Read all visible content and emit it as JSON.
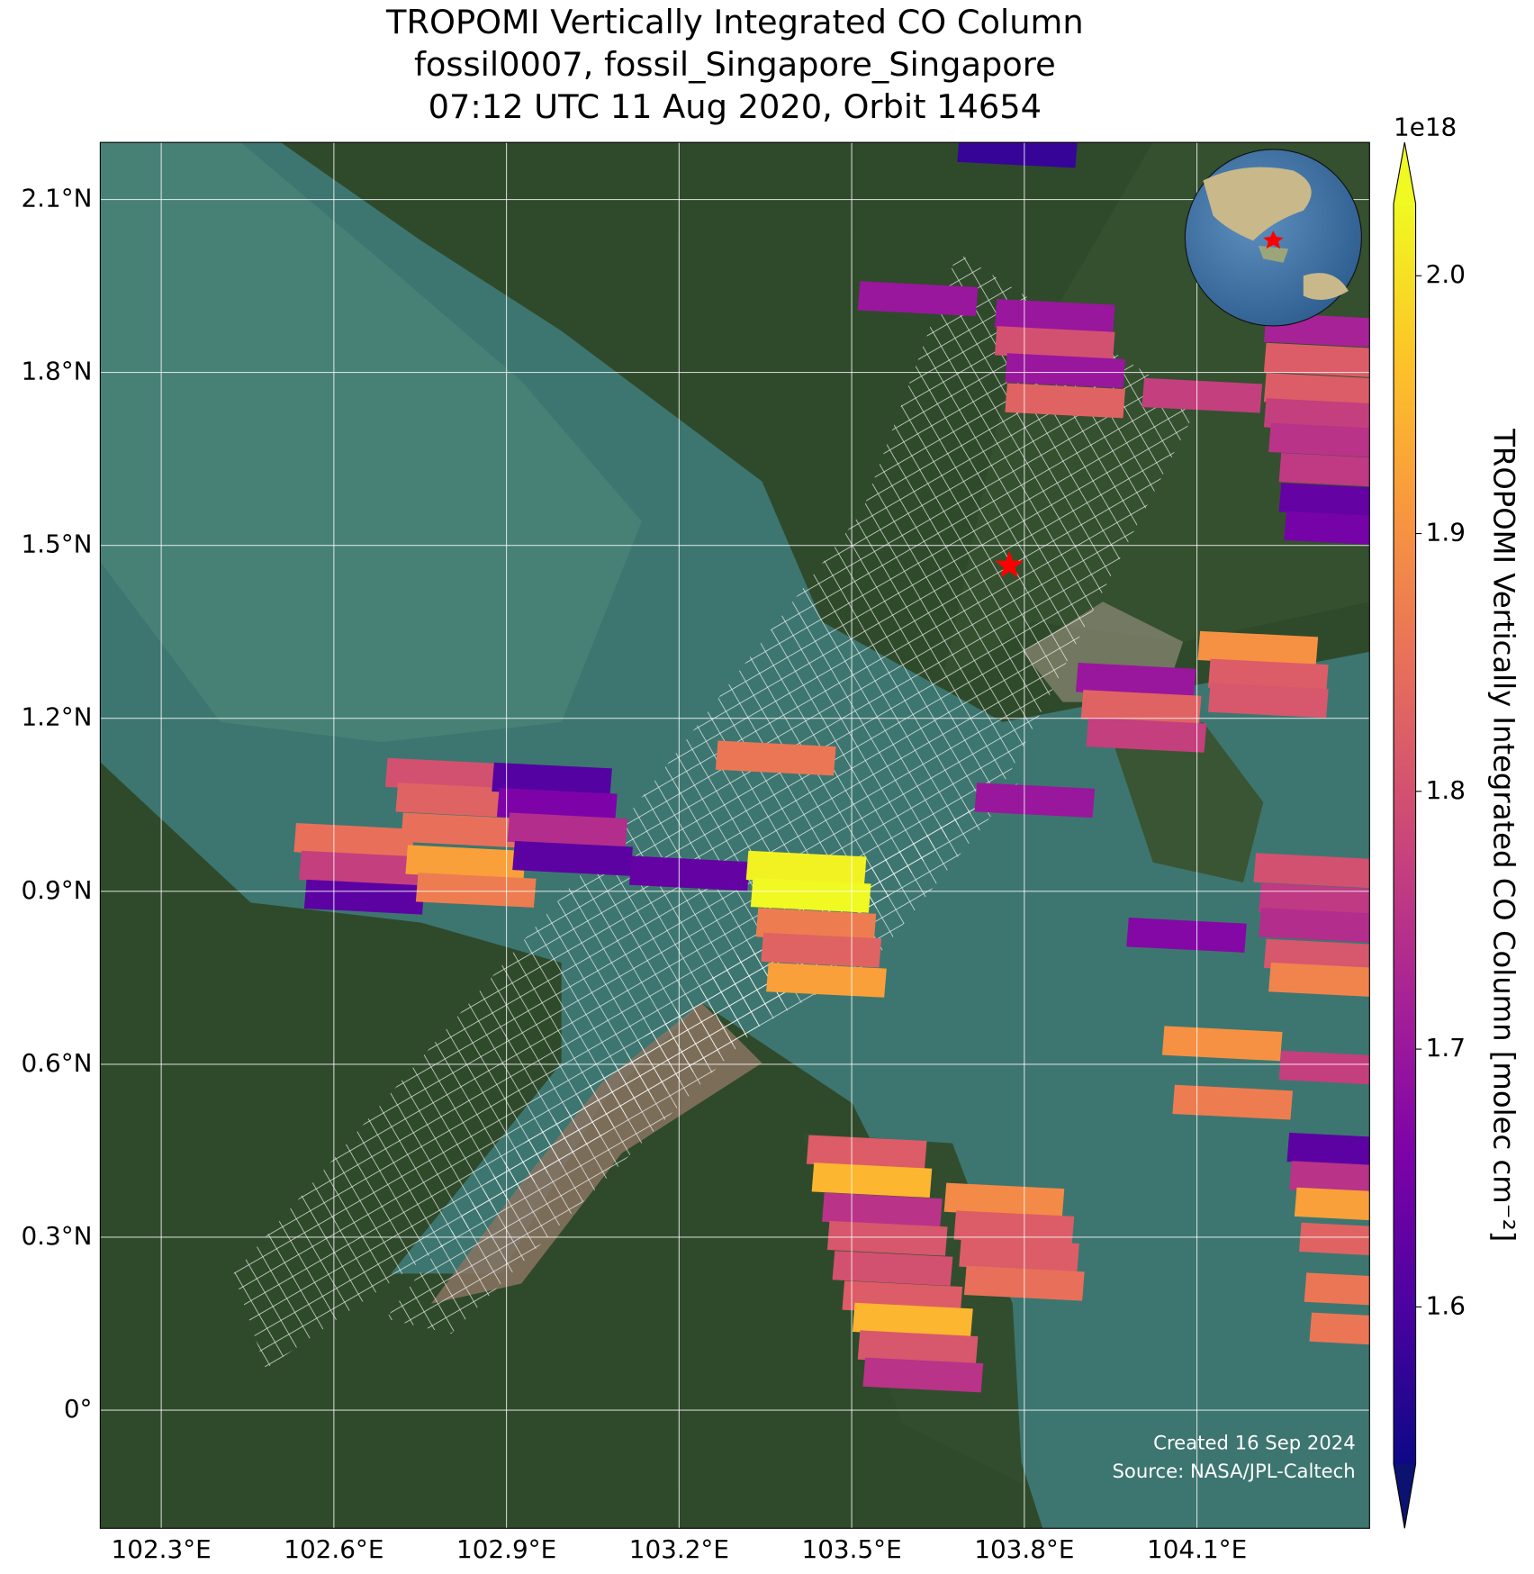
{
  "chart_data": {
    "type": "map",
    "title": [
      "TROPOMI Vertically Integrated CO Column",
      "fossil0007, fossil_Singapore_Singapore",
      "07:12 UTC 11 Aug 2020, Orbit 14654"
    ],
    "xlim": [
      102.194,
      104.4
    ],
    "ylim": [
      -0.205,
      2.199
    ],
    "xticks": [
      {
        "value": 102.3,
        "label": "102.3°E"
      },
      {
        "value": 102.6,
        "label": "102.6°E"
      },
      {
        "value": 102.9,
        "label": "102.9°E"
      },
      {
        "value": 103.2,
        "label": "103.2°E"
      },
      {
        "value": 103.5,
        "label": "103.5°E"
      },
      {
        "value": 103.8,
        "label": "103.8°E"
      },
      {
        "value": 104.1,
        "label": "104.1°E"
      }
    ],
    "yticks": [
      {
        "value": 0,
        "label": "0°"
      },
      {
        "value": 0.3,
        "label": "0.3°N"
      },
      {
        "value": 0.6,
        "label": "0.6°N"
      },
      {
        "value": 0.9,
        "label": "0.9°N"
      },
      {
        "value": 1.2,
        "label": "1.2°N"
      },
      {
        "value": 1.5,
        "label": "1.5°N"
      },
      {
        "value": 1.8,
        "label": "1.8°N"
      },
      {
        "value": 2.1,
        "label": "2.1°N"
      }
    ],
    "grid": true,
    "colorbar": {
      "label": "TROPOMI Vertically Integrated CO Column [molec cm⁻²]",
      "exponent": "1e18",
      "clim": [
        1.539,
        2.028
      ],
      "ticks": [
        1.6,
        1.7,
        1.8,
        1.9,
        {
          "value": 2,
          "label": "2.0"
        }
      ],
      "colormap": "plasma",
      "extend": "both"
    },
    "target": {
      "lon": 103.774,
      "lat": 1.465,
      "color": "red"
    },
    "pixels": {
      "lon": [
        103.788,
        103.615,
        103.853,
        103.853,
        103.871,
        103.871,
        104.109,
        104.321,
        104.321,
        104.321,
        104.321,
        104.329,
        104.347,
        104.347,
        104.356,
        104.206,
        104.224,
        104.224,
        103.994,
        104.003,
        104.012,
        103.368,
        103.818,
        102.635,
        102.644,
        102.653,
        102.794,
        102.812,
        102.821,
        102.829,
        102.847,
        102.979,
        102.988,
        103.006,
        103.015,
        103.218,
        103.421,
        103.429,
        103.438,
        103.447,
        103.456,
        104.303,
        104.312,
        104.082,
        104.312,
        104.321,
        104.329,
        104.144,
        104.162,
        104.347,
        103.526,
        103.535,
        103.553,
        103.562,
        103.571,
        103.588,
        103.606,
        103.615,
        103.624,
        103.765,
        103.782,
        103.791,
        103.8,
        104.361,
        104.365,
        104.374,
        104.382,
        104.391,
        104.4
      ],
      "lat": [
        2.185,
        1.928,
        1.897,
        1.85,
        1.803,
        1.751,
        1.76,
        1.873,
        1.821,
        1.769,
        1.725,
        1.682,
        1.63,
        1.578,
        1.529,
        1.321,
        1.273,
        1.231,
        1.266,
        1.219,
        1.171,
        1.131,
        1.058,
        0.988,
        0.94,
        0.89,
        1.101,
        1.058,
        1.006,
        0.95,
        0.902,
        1.093,
        1.049,
        1.006,
        0.957,
        0.931,
        0.94,
        0.893,
        0.841,
        0.798,
        0.746,
        0.936,
        0.884,
        0.824,
        0.841,
        0.787,
        0.746,
        0.636,
        0.534,
        0.593,
        0.447,
        0.399,
        0.347,
        0.298,
        0.246,
        0.194,
        0.156,
        0.108,
        0.061,
        0.364,
        0.316,
        0.269,
        0.22,
        0.451,
        0.402,
        0.356,
        0.295,
        0.208,
        0.139
      ],
      "values": [
        1.58,
        1.7,
        1.7,
        1.8,
        1.7,
        1.83,
        1.77,
        1.72,
        1.82,
        1.82,
        1.77,
        1.75,
        1.76,
        1.63,
        1.65,
        1.9,
        1.82,
        1.81,
        1.7,
        1.83,
        1.77,
        1.86,
        1.7,
        1.85,
        1.77,
        1.62,
        1.8,
        1.83,
        1.85,
        1.92,
        1.87,
        1.61,
        1.66,
        1.74,
        1.62,
        1.63,
        2.02,
        2.03,
        1.87,
        1.83,
        1.92,
        1.8,
        1.76,
        1.67,
        1.74,
        1.81,
        1.88,
        1.9,
        1.87,
        1.77,
        1.82,
        1.95,
        1.75,
        1.81,
        1.8,
        1.82,
        1.95,
        1.81,
        1.75,
        1.89,
        1.82,
        1.82,
        1.85,
        1.62,
        1.75,
        1.92,
        1.83,
        1.86,
        1.86
      ]
    },
    "annotations": [
      "Created 16 Sep 2024",
      "Source: NASA/JPL-Caltech"
    ]
  }
}
